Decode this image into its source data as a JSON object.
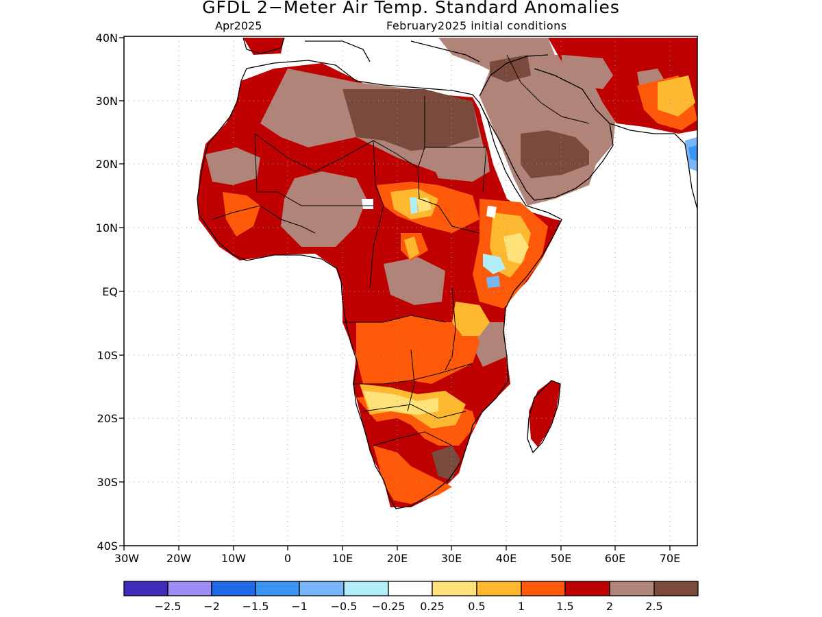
{
  "header": {
    "title": "GFDL 2-Meter Air Temp. Standard Anomalies",
    "valid_month": "Apr2025",
    "init": "February2025 initial conditions"
  },
  "axes": {
    "lat_labels": [
      "40N",
      "30N",
      "20N",
      "10N",
      "EQ",
      "10S",
      "20S",
      "30S",
      "40S"
    ],
    "lon_labels": [
      "30W",
      "20W",
      "10W",
      "0",
      "10E",
      "20E",
      "30E",
      "40E",
      "50E",
      "60E",
      "70E"
    ],
    "lat_range": [
      -40,
      40
    ],
    "lon_range": [
      -30,
      75
    ],
    "grid": "dotted"
  },
  "colors": {
    "neg_2_5": "#3d2db8",
    "neg_2": "#9e8cf6",
    "neg_1_5": "#1e69e6",
    "neg_1": "#3a94f2",
    "neg_0_5": "#79b6f7",
    "neg_0_25": "#b2eefa",
    "near_zero": "#ffffff",
    "pos_0_25": "#ffe27a",
    "pos_0_5": "#ffb930",
    "pos_1": "#fe5a0a",
    "pos_1_5": "#bf0000",
    "pos_2": "#b08478",
    "pos_2_5": "#7a4a3c"
  },
  "legend": {
    "ticks": [
      "-2.5",
      "-2",
      "-1.5",
      "-1",
      "-0.5",
      "-0.25",
      "0.25",
      "0.5",
      "1",
      "1.5",
      "2",
      "2.5"
    ]
  }
}
